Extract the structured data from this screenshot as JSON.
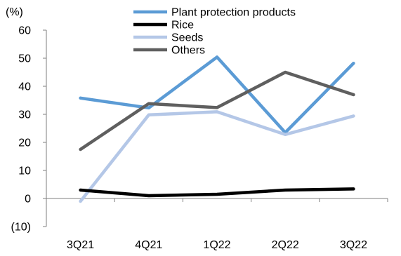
{
  "chart_data": {
    "type": "line",
    "unit_label": "(%)",
    "categories": [
      "3Q21",
      "4Q21",
      "1Q22",
      "2Q22",
      "3Q22"
    ],
    "ylim": [
      -10,
      60
    ],
    "yticks": [
      -10,
      0,
      10,
      20,
      30,
      40,
      50,
      60
    ],
    "ytick_labels": [
      "(10)",
      "0",
      "10",
      "20",
      "30",
      "40",
      "50",
      "60"
    ],
    "grid": false,
    "legend_position": "top",
    "series": [
      {
        "name": "Plant protection products",
        "color": "#5b9bd5",
        "values": [
          35.8,
          32.3,
          50.4,
          23.5,
          48.2
        ]
      },
      {
        "name": "Rice",
        "color": "#000000",
        "values": [
          3.0,
          1.0,
          1.5,
          3.0,
          3.4
        ]
      },
      {
        "name": "Seeds",
        "color": "#b4c7e7",
        "values": [
          -1.0,
          29.8,
          30.9,
          22.8,
          29.4
        ]
      },
      {
        "name": "Others",
        "color": "#5f5f5f",
        "values": [
          17.5,
          33.8,
          32.4,
          45.0,
          37.0
        ]
      }
    ]
  }
}
